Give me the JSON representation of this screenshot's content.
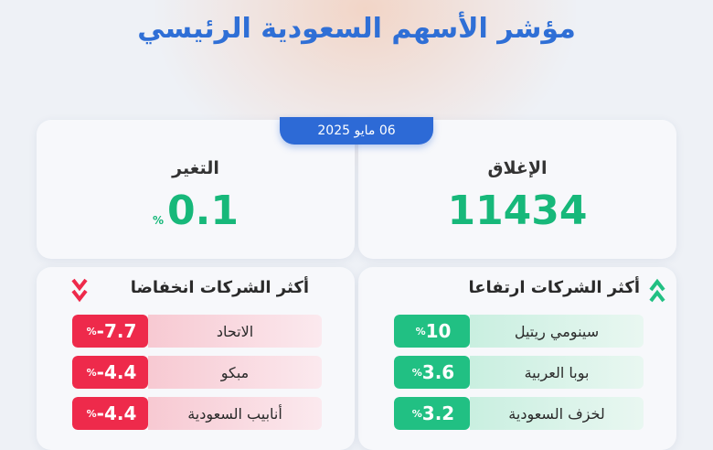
{
  "header": {
    "title": "مؤشر الأسهم السعودية الرئيسي"
  },
  "date": "06 مايو 2025",
  "summary": {
    "close_label": "الإغلاق",
    "close_value": "11434",
    "change_label": "التغير",
    "change_value": "0.1",
    "change_unit": "%"
  },
  "gainers": {
    "title": "أكثر الشركات ارتفاعا",
    "items": [
      {
        "name": "سينومي ريتيل",
        "value": "10",
        "unit": "%"
      },
      {
        "name": "بوبا العربية",
        "value": "3.6",
        "unit": "%"
      },
      {
        "name": "لخزف السعودية",
        "value": "3.2",
        "unit": "%"
      }
    ]
  },
  "losers": {
    "title": "أكثر الشركات انخفاضا",
    "items": [
      {
        "name": "الاتحاد",
        "value": "-7.7",
        "unit": "%"
      },
      {
        "name": "مبكو",
        "value": "-4.4",
        "unit": "%"
      },
      {
        "name": "أنابيب السعودية",
        "value": "-4.4",
        "unit": "%"
      }
    ]
  },
  "colors": {
    "accent": "#2d6ad6",
    "up": "#21c083",
    "down": "#ee2a4b",
    "value_green": "#17b87a"
  },
  "icons": {
    "up": "double-chevron-up-icon",
    "down": "double-chevron-down-icon"
  }
}
